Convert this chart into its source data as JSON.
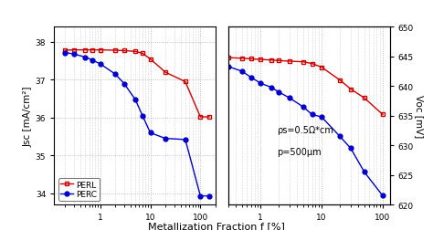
{
  "x_jsc": [
    0.2,
    0.3,
    0.5,
    0.7,
    1.0,
    2.0,
    3.0,
    5.0,
    7.0,
    10.0,
    20.0,
    50.0,
    100.0,
    150.0
  ],
  "perl_jsc": [
    37.78,
    37.79,
    37.79,
    37.79,
    37.79,
    37.78,
    37.77,
    37.75,
    37.7,
    37.55,
    37.2,
    36.95,
    36.02,
    36.02
  ],
  "perc_jsc": [
    37.72,
    37.68,
    37.6,
    37.52,
    37.42,
    37.15,
    36.9,
    36.48,
    36.05,
    35.6,
    35.45,
    35.42,
    33.93,
    33.93
  ],
  "x_voc": [
    0.3,
    0.5,
    0.7,
    1.0,
    1.5,
    2.0,
    3.0,
    5.0,
    7.0,
    10.0,
    20.0,
    30.0,
    50.0,
    100.0
  ],
  "perl_voc": [
    644.8,
    644.7,
    644.6,
    644.5,
    644.4,
    644.3,
    644.2,
    644.1,
    643.8,
    643.2,
    641.0,
    639.5,
    638.0,
    635.2
  ],
  "perc_voc": [
    643.3,
    642.5,
    641.5,
    640.5,
    639.8,
    639.0,
    638.0,
    636.5,
    635.2,
    634.8,
    631.5,
    629.5,
    625.5,
    621.5
  ],
  "jsc_ylim": [
    33.7,
    38.4
  ],
  "jsc_yticks": [
    34,
    35,
    36,
    37,
    38
  ],
  "voc_ylim": [
    620,
    650
  ],
  "voc_yticks": [
    620,
    625,
    630,
    635,
    640,
    645,
    650
  ],
  "xlim_left": [
    0.12,
    200
  ],
  "xlim_right": [
    0.3,
    130
  ],
  "perl_color": "#cc0000",
  "perc_color": "#0000cc",
  "annotation_line1": "ρs=0.5Ω*cm",
  "annotation_line2": "p=500μm",
  "xlabel": "Metallization Fraction f [%]",
  "ylabel_left": "Jsc [mA/cm²]",
  "ylabel_right": "Voc [mV]",
  "bg_color": "#ffffff",
  "grid_color": "#b0b0b0"
}
